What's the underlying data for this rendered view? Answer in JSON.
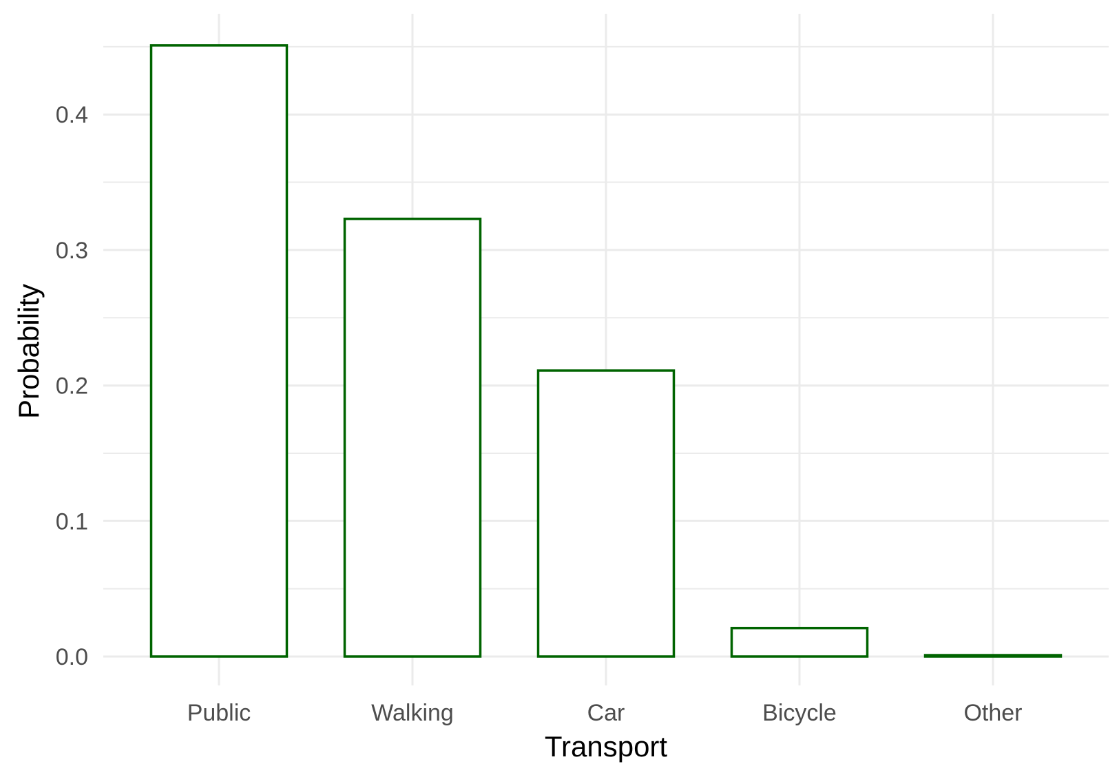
{
  "chart_data": {
    "type": "bar",
    "title": "",
    "xlabel": "Transport",
    "ylabel": "Probability",
    "categories": [
      "Public",
      "Walking",
      "Car",
      "Bicycle",
      "Other"
    ],
    "values": [
      0.451,
      0.323,
      0.211,
      0.021,
      0.001
    ],
    "ylim": [
      0,
      0.45
    ],
    "y_ticks": [
      "0.0",
      "0.1",
      "0.2",
      "0.3",
      "0.4"
    ],
    "y_tick_values": [
      0.0,
      0.1,
      0.2,
      0.3,
      0.4
    ],
    "grid": true,
    "legend": "none",
    "colors": {
      "bar_outline": "#006400",
      "bar_fill": "#ffffff",
      "grid": "#ebebeb"
    }
  }
}
